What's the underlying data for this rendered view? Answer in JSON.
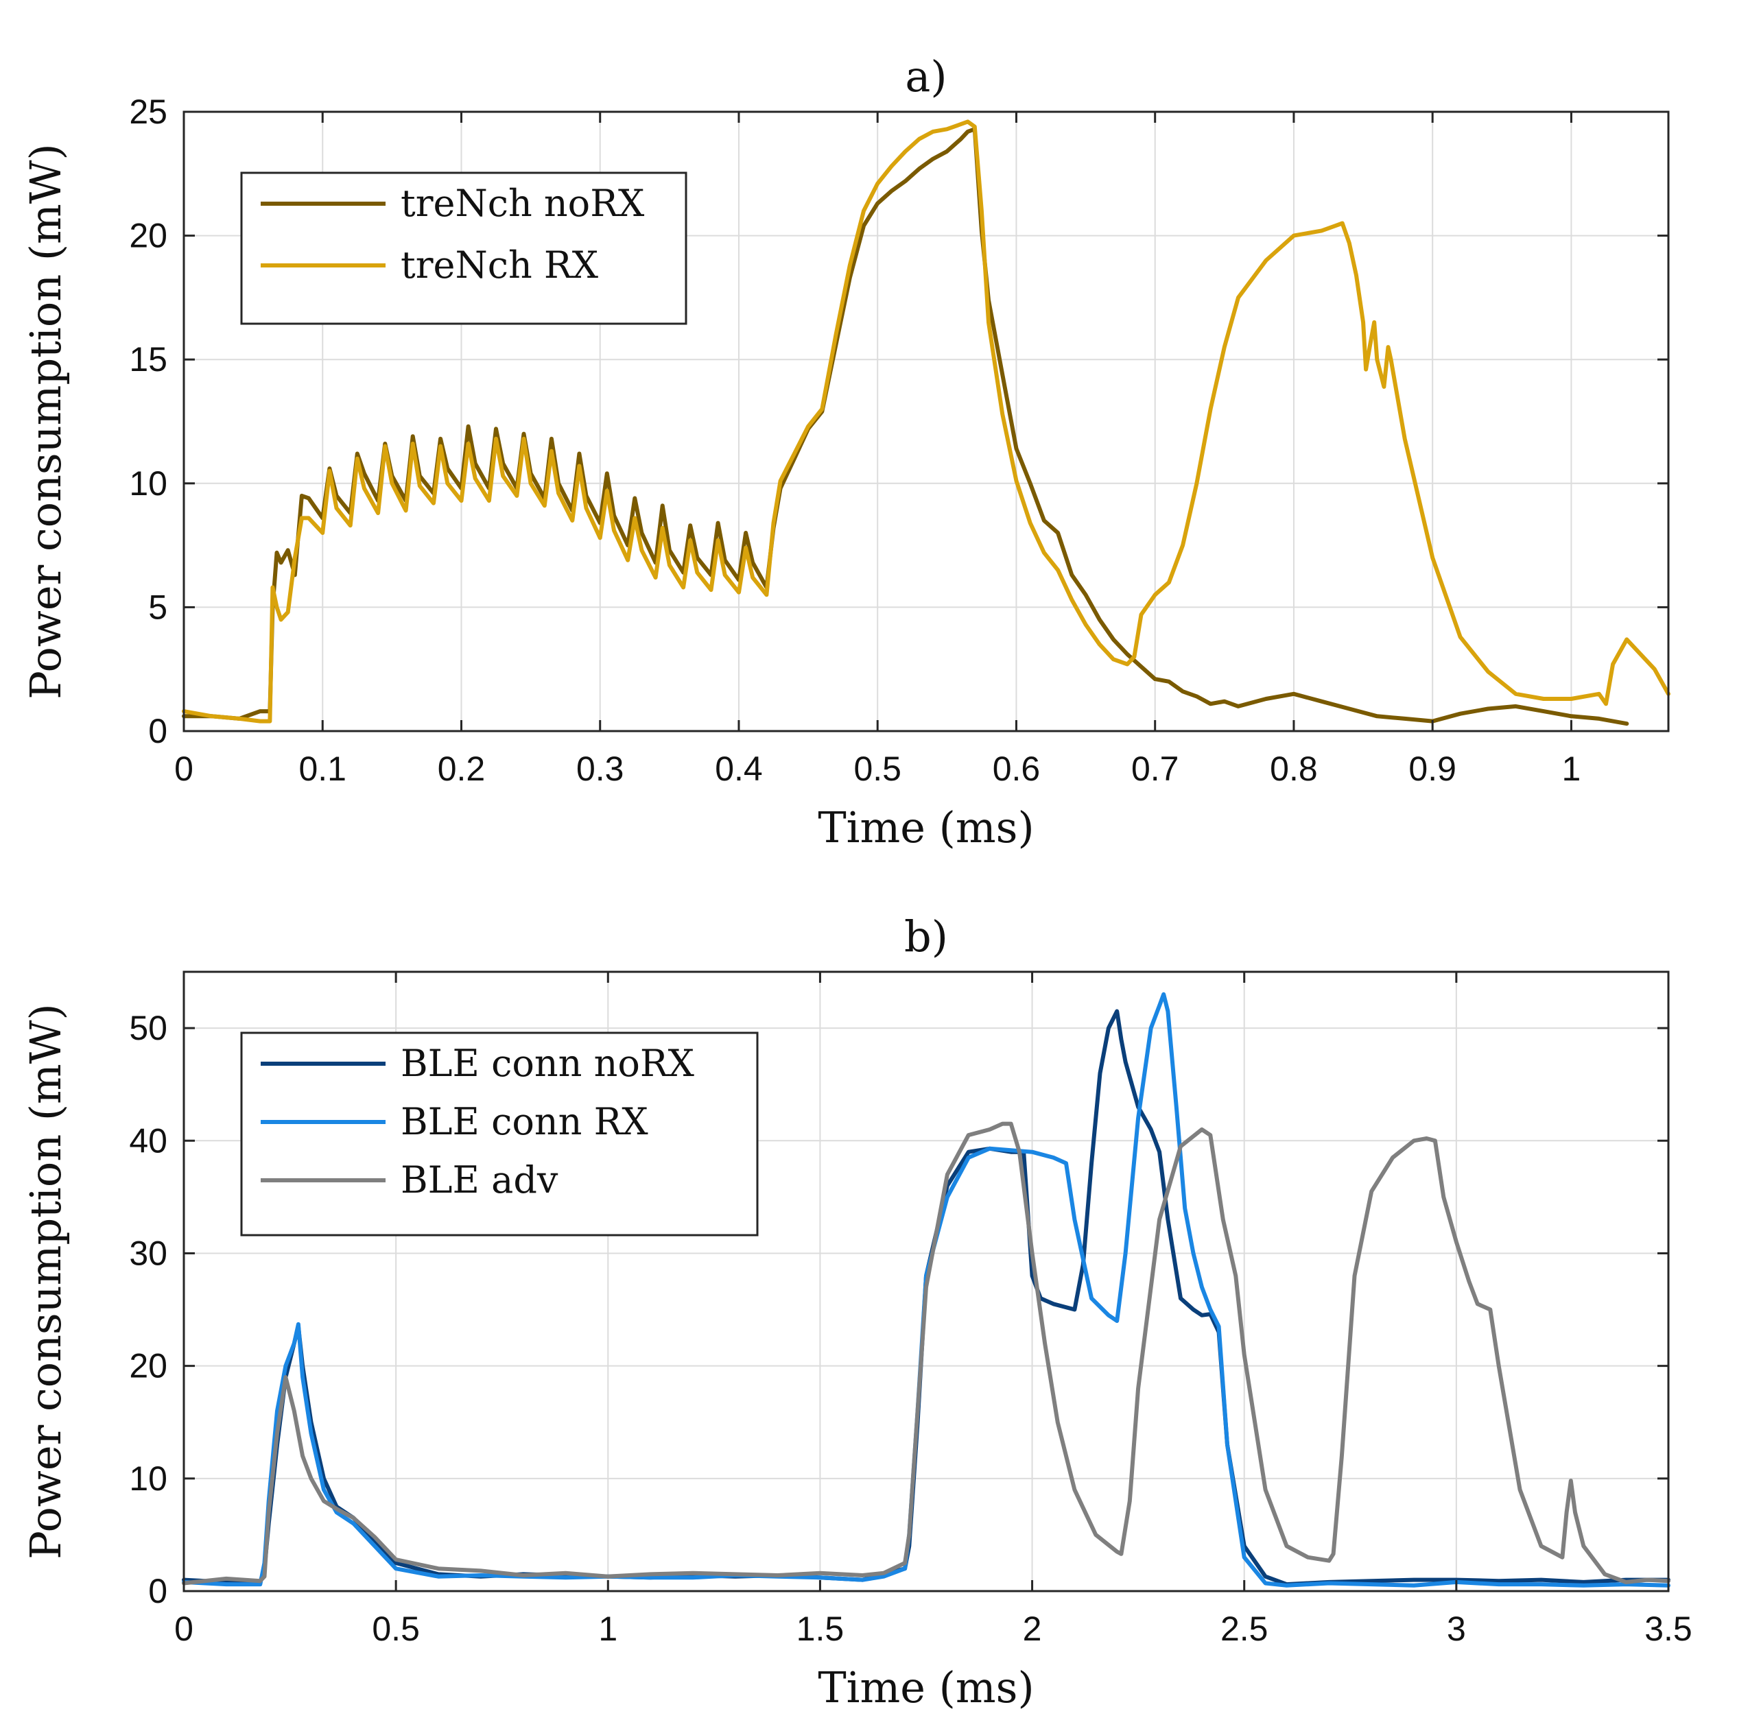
{
  "chart_data": [
    {
      "type": "line",
      "title": "a)",
      "xlabel": "Time (ms)",
      "ylabel": "Power consumption (mW)",
      "xlim": [
        0,
        1.07
      ],
      "ylim": [
        0,
        25
      ],
      "xticks": [
        0,
        0.1,
        0.2,
        0.3,
        0.4,
        0.5,
        0.6,
        0.7,
        0.8,
        0.9,
        1
      ],
      "xtick_labels": [
        "0",
        "0.1",
        "0.2",
        "0.3",
        "0.4",
        "0.5",
        "0.6",
        "0.7",
        "0.8",
        "0.9",
        "1"
      ],
      "yticks": [
        0,
        5,
        10,
        15,
        20,
        25
      ],
      "ytick_labels": [
        "0",
        "5",
        "10",
        "15",
        "20",
        "25"
      ],
      "grid": true,
      "legend_position": "top-left",
      "series": [
        {
          "name": "treNch noRX",
          "color": "#7a5a00",
          "x": [
            0,
            0.02,
            0.04,
            0.055,
            0.062,
            0.064,
            0.067,
            0.07,
            0.075,
            0.08,
            0.085,
            0.09,
            0.1,
            0.105,
            0.11,
            0.12,
            0.125,
            0.13,
            0.14,
            0.145,
            0.15,
            0.16,
            0.165,
            0.17,
            0.18,
            0.185,
            0.19,
            0.2,
            0.205,
            0.21,
            0.22,
            0.225,
            0.23,
            0.24,
            0.245,
            0.25,
            0.26,
            0.265,
            0.27,
            0.28,
            0.285,
            0.29,
            0.3,
            0.305,
            0.31,
            0.32,
            0.325,
            0.33,
            0.34,
            0.345,
            0.35,
            0.36,
            0.365,
            0.37,
            0.38,
            0.385,
            0.39,
            0.4,
            0.405,
            0.41,
            0.42,
            0.425,
            0.43,
            0.44,
            0.45,
            0.46,
            0.47,
            0.48,
            0.49,
            0.5,
            0.51,
            0.52,
            0.53,
            0.54,
            0.55,
            0.56,
            0.565,
            0.57,
            0.575,
            0.58,
            0.59,
            0.6,
            0.61,
            0.62,
            0.63,
            0.64,
            0.65,
            0.66,
            0.67,
            0.68,
            0.69,
            0.7,
            0.71,
            0.72,
            0.73,
            0.74,
            0.75,
            0.76,
            0.78,
            0.8,
            0.82,
            0.84,
            0.86,
            0.88,
            0.9,
            0.92,
            0.94,
            0.96,
            0.98,
            1.0,
            1.02,
            1.04
          ],
          "y": [
            0.6,
            0.6,
            0.5,
            0.8,
            0.8,
            5.0,
            7.2,
            6.8,
            7.3,
            6.3,
            9.5,
            9.4,
            8.6,
            10.6,
            9.5,
            8.8,
            11.2,
            10.4,
            9.3,
            11.6,
            10.3,
            9.3,
            11.9,
            10.3,
            9.6,
            11.8,
            10.6,
            9.8,
            12.3,
            10.8,
            9.8,
            12.2,
            10.8,
            9.8,
            12.0,
            10.4,
            9.4,
            11.8,
            10.0,
            8.9,
            11.2,
            9.5,
            8.4,
            10.4,
            8.7,
            7.5,
            9.4,
            8.0,
            6.8,
            9.1,
            7.3,
            6.4,
            8.3,
            7.0,
            6.3,
            8.4,
            6.9,
            6.1,
            8.0,
            6.8,
            5.8,
            8.2,
            9.8,
            11.0,
            12.2,
            12.9,
            15.6,
            18.3,
            20.4,
            21.3,
            21.8,
            22.2,
            22.7,
            23.1,
            23.4,
            23.9,
            24.2,
            24.3,
            20.2,
            17.4,
            14.4,
            11.4,
            10.0,
            8.5,
            8.0,
            6.3,
            5.5,
            4.5,
            3.7,
            3.1,
            2.6,
            2.1,
            2.0,
            1.6,
            1.4,
            1.1,
            1.2,
            1.0,
            1.3,
            1.5,
            1.2,
            0.9,
            0.6,
            0.5,
            0.4,
            0.7,
            0.9,
            1.0,
            0.8,
            0.6,
            0.5,
            0.3
          ]
        },
        {
          "name": "treNch RX",
          "color": "#d9a30c",
          "x": [
            0,
            0.02,
            0.04,
            0.055,
            0.062,
            0.064,
            0.067,
            0.07,
            0.075,
            0.08,
            0.085,
            0.09,
            0.1,
            0.105,
            0.11,
            0.12,
            0.125,
            0.13,
            0.14,
            0.145,
            0.15,
            0.16,
            0.165,
            0.17,
            0.18,
            0.185,
            0.19,
            0.2,
            0.205,
            0.21,
            0.22,
            0.225,
            0.23,
            0.24,
            0.245,
            0.25,
            0.26,
            0.265,
            0.27,
            0.28,
            0.285,
            0.29,
            0.3,
            0.305,
            0.31,
            0.32,
            0.325,
            0.33,
            0.34,
            0.345,
            0.35,
            0.36,
            0.365,
            0.37,
            0.38,
            0.385,
            0.39,
            0.4,
            0.405,
            0.41,
            0.42,
            0.425,
            0.43,
            0.44,
            0.45,
            0.46,
            0.47,
            0.48,
            0.49,
            0.5,
            0.51,
            0.52,
            0.53,
            0.54,
            0.55,
            0.56,
            0.565,
            0.57,
            0.575,
            0.58,
            0.59,
            0.6,
            0.61,
            0.62,
            0.63,
            0.64,
            0.65,
            0.66,
            0.67,
            0.68,
            0.685,
            0.69,
            0.7,
            0.71,
            0.72,
            0.73,
            0.74,
            0.75,
            0.76,
            0.78,
            0.8,
            0.82,
            0.83,
            0.835,
            0.84,
            0.845,
            0.85,
            0.852,
            0.855,
            0.858,
            0.86,
            0.865,
            0.868,
            0.87,
            0.88,
            0.9,
            0.92,
            0.94,
            0.96,
            0.98,
            1.0,
            1.02,
            1.025,
            1.03,
            1.04,
            1.06,
            1.07
          ],
          "y": [
            0.8,
            0.6,
            0.5,
            0.4,
            0.4,
            5.8,
            5.0,
            4.5,
            4.8,
            7.0,
            8.6,
            8.6,
            8.0,
            10.5,
            9.0,
            8.3,
            11.0,
            9.8,
            8.8,
            11.5,
            10.0,
            8.9,
            11.6,
            9.9,
            9.2,
            11.5,
            10.0,
            9.3,
            11.6,
            10.2,
            9.3,
            11.8,
            10.3,
            9.5,
            11.8,
            10.0,
            9.1,
            11.3,
            9.6,
            8.5,
            10.7,
            9.0,
            7.8,
            9.7,
            8.1,
            6.9,
            8.6,
            7.3,
            6.2,
            8.2,
            6.7,
            5.8,
            7.7,
            6.4,
            5.7,
            7.7,
            6.3,
            5.6,
            7.4,
            6.2,
            5.5,
            8.4,
            10.1,
            11.2,
            12.3,
            13.0,
            16.0,
            18.8,
            21.0,
            22.1,
            22.8,
            23.4,
            23.9,
            24.2,
            24.3,
            24.5,
            24.6,
            24.4,
            21.0,
            16.5,
            12.8,
            10.1,
            8.4,
            7.2,
            6.5,
            5.3,
            4.3,
            3.5,
            2.9,
            2.7,
            3.0,
            4.7,
            5.5,
            6.0,
            7.5,
            10.0,
            13.0,
            15.5,
            17.5,
            19.0,
            20.0,
            20.2,
            20.4,
            20.5,
            19.7,
            18.4,
            16.5,
            14.6,
            15.6,
            16.5,
            15.0,
            13.9,
            15.5,
            15.0,
            11.8,
            7.0,
            3.8,
            2.4,
            1.5,
            1.3,
            1.3,
            1.5,
            1.1,
            2.7,
            3.7,
            2.5,
            1.5
          ]
        }
      ]
    },
    {
      "type": "line",
      "title": "b)",
      "xlabel": "Time (ms)",
      "ylabel": "Power consumption (mW)",
      "xlim": [
        0,
        3.5
      ],
      "ylim": [
        0,
        55
      ],
      "xticks": [
        0,
        0.5,
        1,
        1.5,
        2,
        2.5,
        3,
        3.5
      ],
      "xtick_labels": [
        "0",
        "0.5",
        "1",
        "1.5",
        "2",
        "2.5",
        "3",
        "3.5"
      ],
      "yticks": [
        0,
        10,
        20,
        30,
        40,
        50
      ],
      "ytick_labels": [
        "0",
        "10",
        "20",
        "30",
        "40",
        "50"
      ],
      "grid": true,
      "legend_position": "top-left",
      "series": [
        {
          "name": "BLE conn noRX",
          "color": "#0a3f7a",
          "x": [
            0,
            0.1,
            0.18,
            0.19,
            0.2,
            0.22,
            0.24,
            0.26,
            0.27,
            0.28,
            0.3,
            0.33,
            0.36,
            0.4,
            0.45,
            0.5,
            0.6,
            0.7,
            0.8,
            0.9,
            1.0,
            1.1,
            1.2,
            1.3,
            1.4,
            1.5,
            1.6,
            1.65,
            1.7,
            1.71,
            1.73,
            1.75,
            1.8,
            1.85,
            1.9,
            1.95,
            1.98,
            2.0,
            2.02,
            2.05,
            2.1,
            2.12,
            2.14,
            2.16,
            2.18,
            2.2,
            2.21,
            2.22,
            2.25,
            2.28,
            2.3,
            2.32,
            2.35,
            2.38,
            2.4,
            2.42,
            2.44,
            2.46,
            2.5,
            2.55,
            2.6,
            2.7,
            2.8,
            2.9,
            3.0,
            3.1,
            3.2,
            3.3,
            3.4,
            3.5
          ],
          "y": [
            1.0,
            0.8,
            0.8,
            2.0,
            6.0,
            13.0,
            19.0,
            22.0,
            23.5,
            20.0,
            15.0,
            10.0,
            7.5,
            6.5,
            4.5,
            2.5,
            1.5,
            1.3,
            1.5,
            1.4,
            1.3,
            1.2,
            1.4,
            1.3,
            1.4,
            1.2,
            1.0,
            1.5,
            2.0,
            4.0,
            15.0,
            28.0,
            36.0,
            39.0,
            39.3,
            39.0,
            39.0,
            28.0,
            26.0,
            25.5,
            25.0,
            29.0,
            38.0,
            46.0,
            50.0,
            51.5,
            49.0,
            47.0,
            43.0,
            41.0,
            39.0,
            33.0,
            26.0,
            25.0,
            24.5,
            24.6,
            23.0,
            13.0,
            4.0,
            1.3,
            0.6,
            0.8,
            0.9,
            1.0,
            1.0,
            0.9,
            1.0,
            0.8,
            1.0,
            1.0
          ]
        },
        {
          "name": "BLE conn RX",
          "color": "#1a86e3",
          "x": [
            0,
            0.1,
            0.18,
            0.19,
            0.2,
            0.22,
            0.24,
            0.26,
            0.27,
            0.28,
            0.3,
            0.33,
            0.36,
            0.4,
            0.45,
            0.5,
            0.6,
            0.7,
            0.8,
            0.9,
            1.0,
            1.1,
            1.2,
            1.3,
            1.4,
            1.5,
            1.6,
            1.65,
            1.7,
            1.71,
            1.73,
            1.75,
            1.8,
            1.85,
            1.9,
            2.0,
            2.05,
            2.08,
            2.1,
            2.14,
            2.18,
            2.2,
            2.22,
            2.25,
            2.28,
            2.3,
            2.31,
            2.32,
            2.34,
            2.36,
            2.38,
            2.4,
            2.42,
            2.44,
            2.46,
            2.5,
            2.55,
            2.6,
            2.7,
            2.8,
            2.9,
            3.0,
            3.1,
            3.2,
            3.3,
            3.4,
            3.5
          ],
          "y": [
            0.8,
            0.6,
            0.6,
            2.5,
            8.0,
            16.0,
            20.0,
            22.0,
            23.7,
            19.0,
            14.0,
            9.0,
            7.0,
            6.0,
            4.0,
            2.0,
            1.3,
            1.4,
            1.3,
            1.2,
            1.3,
            1.2,
            1.2,
            1.4,
            1.3,
            1.2,
            1.0,
            1.3,
            2.0,
            5.0,
            16.0,
            28.0,
            35.0,
            38.5,
            39.3,
            39.0,
            38.5,
            38.0,
            33.0,
            26.0,
            24.5,
            24.0,
            30.0,
            42.0,
            50.0,
            52.0,
            53.0,
            51.5,
            43.0,
            34.0,
            30.0,
            27.0,
            25.0,
            23.5,
            13.0,
            3.0,
            0.7,
            0.5,
            0.7,
            0.6,
            0.5,
            0.8,
            0.6,
            0.6,
            0.5,
            0.6,
            0.5
          ]
        },
        {
          "name": "BLE adv",
          "color": "#7f7f7f",
          "x": [
            0,
            0.1,
            0.18,
            0.19,
            0.2,
            0.22,
            0.24,
            0.26,
            0.28,
            0.3,
            0.33,
            0.36,
            0.4,
            0.45,
            0.5,
            0.6,
            0.7,
            0.8,
            0.9,
            1.0,
            1.1,
            1.2,
            1.3,
            1.4,
            1.5,
            1.6,
            1.65,
            1.7,
            1.71,
            1.73,
            1.75,
            1.8,
            1.85,
            1.9,
            1.93,
            1.95,
            1.97,
            2.0,
            2.03,
            2.06,
            2.1,
            2.15,
            2.2,
            2.21,
            2.23,
            2.25,
            2.3,
            2.35,
            2.4,
            2.42,
            2.45,
            2.48,
            2.5,
            2.55,
            2.6,
            2.65,
            2.7,
            2.71,
            2.73,
            2.76,
            2.8,
            2.85,
            2.9,
            2.93,
            2.95,
            2.97,
            3.0,
            3.03,
            3.05,
            3.08,
            3.1,
            3.15,
            3.2,
            3.25,
            3.26,
            3.27,
            3.28,
            3.3,
            3.35,
            3.4,
            3.45,
            3.5
          ],
          "y": [
            0.7,
            1.1,
            0.9,
            1.3,
            7.0,
            14.0,
            19.0,
            16.0,
            12.0,
            10.0,
            8.0,
            7.3,
            6.5,
            4.8,
            2.8,
            2.0,
            1.8,
            1.4,
            1.6,
            1.3,
            1.5,
            1.6,
            1.5,
            1.4,
            1.6,
            1.4,
            1.6,
            2.5,
            5.0,
            16.0,
            27.0,
            37.0,
            40.5,
            41.0,
            41.5,
            41.5,
            39.0,
            30.0,
            22.0,
            15.0,
            9.0,
            5.0,
            3.5,
            3.3,
            8.0,
            18.0,
            33.0,
            39.5,
            41.0,
            40.5,
            33.0,
            28.0,
            21.0,
            9.0,
            4.0,
            3.0,
            2.7,
            3.3,
            12.0,
            28.0,
            35.5,
            38.5,
            40.0,
            40.2,
            40.0,
            35.0,
            31.0,
            27.5,
            25.5,
            25.0,
            20.0,
            9.0,
            4.0,
            3.0,
            7.0,
            9.8,
            7.0,
            4.0,
            1.5,
            0.8,
            1.0,
            0.9
          ]
        }
      ]
    }
  ]
}
